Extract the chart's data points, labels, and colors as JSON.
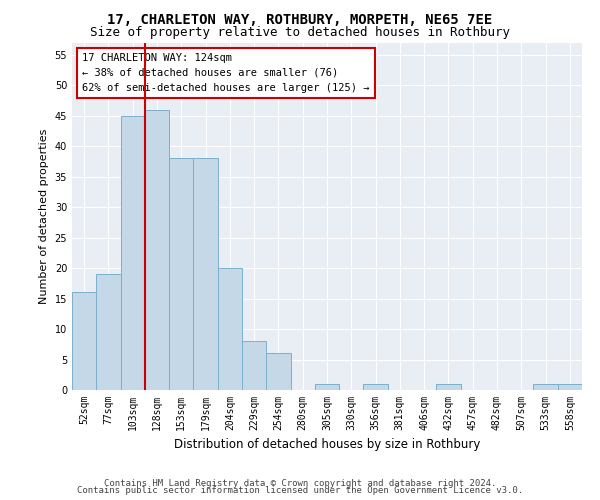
{
  "title1": "17, CHARLETON WAY, ROTHBURY, MORPETH, NE65 7EE",
  "title2": "Size of property relative to detached houses in Rothbury",
  "xlabel": "Distribution of detached houses by size in Rothbury",
  "ylabel": "Number of detached properties",
  "categories": [
    "52sqm",
    "77sqm",
    "103sqm",
    "128sqm",
    "153sqm",
    "179sqm",
    "204sqm",
    "229sqm",
    "254sqm",
    "280sqm",
    "305sqm",
    "330sqm",
    "356sqm",
    "381sqm",
    "406sqm",
    "432sqm",
    "457sqm",
    "482sqm",
    "507sqm",
    "533sqm",
    "558sqm"
  ],
  "values": [
    16,
    19,
    45,
    46,
    38,
    38,
    20,
    8,
    6,
    0,
    1,
    0,
    1,
    0,
    0,
    1,
    0,
    0,
    0,
    1,
    1
  ],
  "bar_color": "#c5d8e8",
  "bar_edgecolor": "#7ab0cc",
  "vline_color": "#cc0000",
  "vline_x": 2.5,
  "annotation_text": "17 CHARLETON WAY: 124sqm\n← 38% of detached houses are smaller (76)\n62% of semi-detached houses are larger (125) →",
  "annotation_box_edgecolor": "#cc0000",
  "ylim": [
    0,
    57
  ],
  "yticks": [
    0,
    5,
    10,
    15,
    20,
    25,
    30,
    35,
    40,
    45,
    50,
    55
  ],
  "background_color": "#e8eef4",
  "footer1": "Contains HM Land Registry data © Crown copyright and database right 2024.",
  "footer2": "Contains public sector information licensed under the Open Government Licence v3.0.",
  "title1_fontsize": 10,
  "title2_fontsize": 9,
  "xlabel_fontsize": 8.5,
  "ylabel_fontsize": 8,
  "tick_fontsize": 7,
  "annotation_fontsize": 7.5,
  "footer_fontsize": 6.5
}
